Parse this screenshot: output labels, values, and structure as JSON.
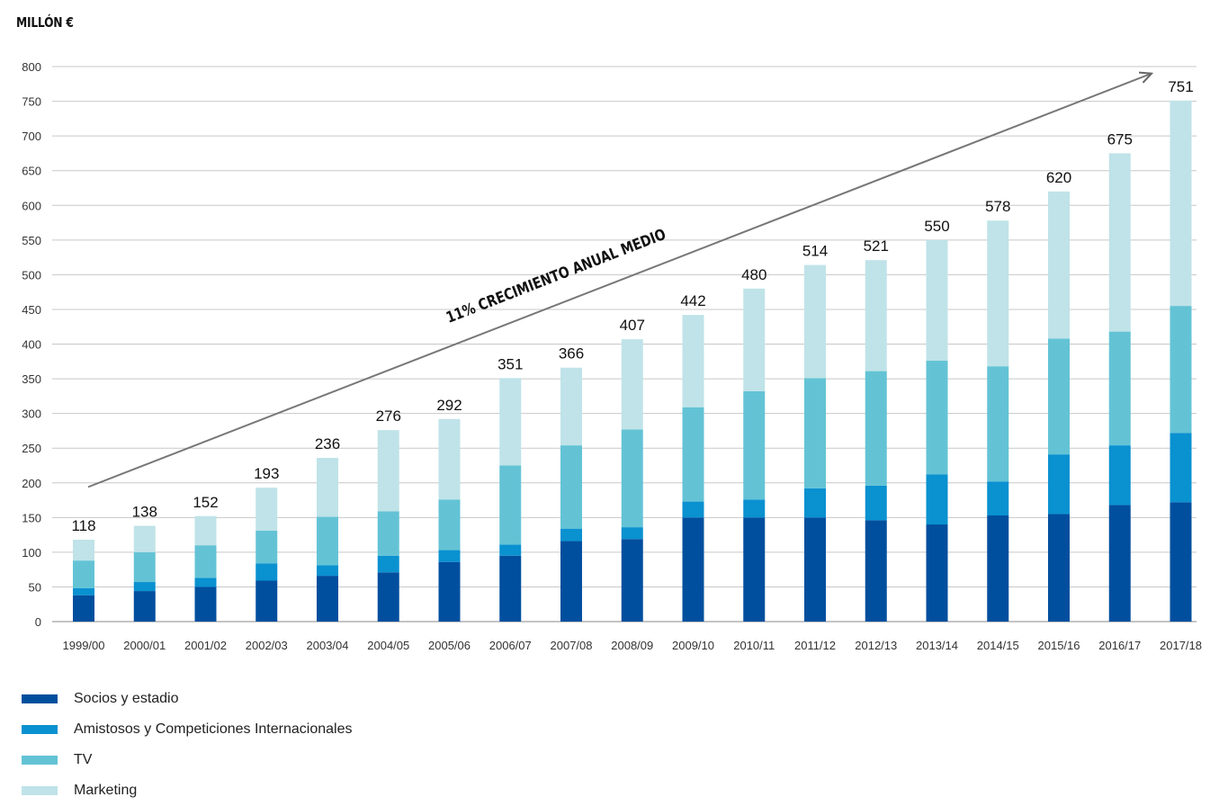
{
  "chart_data": {
    "type": "bar",
    "stacked": true,
    "ylabel": "MILLÓN €",
    "ylim": [
      0,
      800
    ],
    "yticks": [
      0,
      50,
      100,
      150,
      200,
      250,
      300,
      350,
      400,
      450,
      500,
      550,
      600,
      650,
      700,
      750,
      800
    ],
    "grid": true,
    "legend_position": "bottom-left",
    "annotation": "11% CRECIMIENTO ANUAL MEDIO",
    "categories": [
      "1999/00",
      "2000/01",
      "2001/02",
      "2002/03",
      "2003/04",
      "2004/05",
      "2005/06",
      "2006/07",
      "2007/08",
      "2008/09",
      "2009/10",
      "2010/11",
      "2011/12",
      "2012/13",
      "2013/14",
      "2014/15",
      "2015/16",
      "2016/17",
      "2017/18"
    ],
    "totals": [
      118,
      138,
      152,
      193,
      236,
      276,
      292,
      351,
      366,
      407,
      442,
      480,
      514,
      521,
      550,
      578,
      620,
      675,
      751
    ],
    "series": [
      {
        "name": "Socios y estadio",
        "color": "#004f9e",
        "values": [
          38,
          44,
          50,
          59,
          66,
          71,
          86,
          95,
          116,
          119,
          150,
          150,
          150,
          146,
          140,
          153,
          155,
          168,
          172
        ]
      },
      {
        "name": "Amistosos y Competiciones Internacionales",
        "color": "#0a91d0",
        "values": [
          10,
          13,
          13,
          25,
          15,
          24,
          17,
          16,
          18,
          17,
          23,
          26,
          42,
          50,
          72,
          49,
          86,
          86,
          100
        ]
      },
      {
        "name": "TV",
        "color": "#63c3d5",
        "values": [
          40,
          43,
          47,
          47,
          70,
          64,
          73,
          114,
          120,
          141,
          136,
          156,
          159,
          165,
          164,
          166,
          167,
          164,
          183
        ]
      },
      {
        "name": "Marketing",
        "color": "#bfe3e8",
        "values": [
          30,
          38,
          42,
          62,
          85,
          117,
          116,
          126,
          112,
          130,
          133,
          148,
          163,
          160,
          174,
          210,
          212,
          257,
          296
        ]
      }
    ]
  }
}
